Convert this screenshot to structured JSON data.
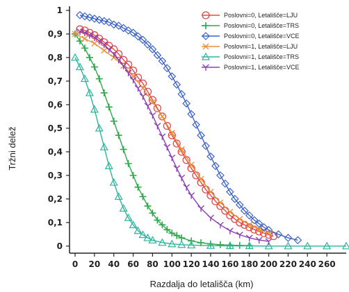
{
  "chart_data": {
    "type": "line",
    "xlabel": "Razdalja do letališča (km)",
    "ylabel": "Tržni delež",
    "xlim": [
      0,
      280
    ],
    "ylim": [
      -0.03,
      1.0
    ],
    "x_ticks": [
      0,
      20,
      40,
      60,
      80,
      100,
      120,
      140,
      160,
      180,
      200,
      220,
      240,
      260
    ],
    "x_tick_labels": [
      "0",
      "20",
      "40",
      "60",
      "80",
      "100",
      "120",
      "140",
      "160",
      "180",
      "200",
      "220",
      "240",
      "260"
    ],
    "y_ticks": [
      0,
      0.1,
      0.2,
      0.3,
      0.4,
      0.5,
      0.6,
      0.7,
      0.8,
      0.9,
      1
    ],
    "y_tick_labels": [
      "0",
      "0,1",
      "0,2",
      "0,3",
      "0,4",
      "0,5",
      "0,6",
      "0,7",
      "0,8",
      "0,9",
      "1"
    ],
    "grid": false,
    "legend_position": "top-right",
    "series": [
      {
        "name": "Poslovni=0, Letališče=LJU",
        "color": "#e04848",
        "marker": "circle",
        "x": [
          5,
          10,
          15,
          20,
          25,
          30,
          35,
          40,
          45,
          50,
          55,
          60,
          65,
          70,
          75,
          80,
          85,
          90,
          95,
          100,
          105,
          110,
          115,
          120,
          125,
          130,
          135,
          140,
          145,
          150,
          155,
          160,
          165,
          170,
          175,
          180,
          185,
          190,
          195,
          200,
          205
        ],
        "values": [
          0.92,
          0.915,
          0.905,
          0.895,
          0.88,
          0.865,
          0.85,
          0.835,
          0.815,
          0.79,
          0.77,
          0.745,
          0.715,
          0.69,
          0.655,
          0.62,
          0.585,
          0.55,
          0.51,
          0.47,
          0.435,
          0.4,
          0.365,
          0.33,
          0.3,
          0.27,
          0.24,
          0.215,
          0.19,
          0.17,
          0.15,
          0.13,
          0.115,
          0.1,
          0.09,
          0.08,
          0.07,
          0.062,
          0.055,
          0.048,
          0.042
        ]
      },
      {
        "name": "Poslovni=0, Letališče=TRS",
        "color": "#2ea84a",
        "marker": "plus",
        "x": [
          0,
          5,
          10,
          15,
          20,
          25,
          30,
          35,
          40,
          45,
          50,
          55,
          60,
          65,
          70,
          75,
          80,
          85,
          90,
          95,
          100,
          105,
          110,
          120,
          130,
          140,
          150,
          160,
          170,
          180
        ],
        "values": [
          0.9,
          0.87,
          0.84,
          0.8,
          0.76,
          0.71,
          0.65,
          0.59,
          0.53,
          0.47,
          0.41,
          0.35,
          0.3,
          0.25,
          0.21,
          0.17,
          0.14,
          0.11,
          0.09,
          0.07,
          0.055,
          0.045,
          0.035,
          0.022,
          0.014,
          0.009,
          0.006,
          0.004,
          0.003,
          0.002
        ]
      },
      {
        "name": "Poslovni=0, Letališče=VCE",
        "color": "#3a62c8",
        "marker": "diamond",
        "x": [
          5,
          10,
          15,
          20,
          25,
          30,
          35,
          40,
          45,
          50,
          55,
          60,
          65,
          70,
          75,
          80,
          85,
          90,
          95,
          100,
          105,
          110,
          115,
          120,
          125,
          130,
          135,
          140,
          145,
          150,
          155,
          160,
          165,
          170,
          175,
          180,
          185,
          190,
          195,
          200,
          210,
          220,
          230
        ],
        "values": [
          0.98,
          0.975,
          0.97,
          0.965,
          0.96,
          0.955,
          0.95,
          0.94,
          0.935,
          0.925,
          0.915,
          0.905,
          0.89,
          0.875,
          0.855,
          0.835,
          0.81,
          0.785,
          0.755,
          0.72,
          0.685,
          0.645,
          0.605,
          0.56,
          0.515,
          0.47,
          0.425,
          0.38,
          0.34,
          0.3,
          0.265,
          0.23,
          0.2,
          0.175,
          0.15,
          0.13,
          0.11,
          0.095,
          0.08,
          0.068,
          0.05,
          0.035,
          0.025
        ]
      },
      {
        "name": "Poslovni=1, Letališče=LJU",
        "color": "#e8913a",
        "marker": "x",
        "x": [
          0,
          10,
          20,
          30,
          40,
          50,
          60,
          70,
          80,
          90,
          100,
          110,
          120,
          130,
          140,
          150,
          160,
          170,
          180,
          190,
          200
        ],
        "values": [
          0.9,
          0.88,
          0.86,
          0.83,
          0.8,
          0.765,
          0.72,
          0.67,
          0.61,
          0.55,
          0.48,
          0.41,
          0.345,
          0.285,
          0.23,
          0.185,
          0.145,
          0.115,
          0.09,
          0.07,
          0.055
        ]
      },
      {
        "name": "Poslovni=1, Letališče=TRS",
        "color": "#2bb59a",
        "marker": "triangle",
        "x": [
          0,
          5,
          10,
          15,
          20,
          25,
          30,
          35,
          40,
          45,
          50,
          55,
          60,
          65,
          70,
          75,
          80,
          90,
          100,
          110,
          120,
          140,
          160,
          180,
          200,
          220,
          240,
          260,
          280
        ],
        "values": [
          0.8,
          0.76,
          0.71,
          0.65,
          0.58,
          0.5,
          0.42,
          0.34,
          0.27,
          0.21,
          0.16,
          0.12,
          0.09,
          0.065,
          0.048,
          0.035,
          0.025,
          0.015,
          0.009,
          0.006,
          0.004,
          0.002,
          0.001,
          0.001,
          0.0,
          0.0,
          0.0,
          0.0,
          0.0
        ]
      },
      {
        "name": "Poslovni=1, Letališče=VCE",
        "color": "#8a3fb5",
        "marker": "y",
        "x": [
          5,
          10,
          15,
          20,
          25,
          30,
          35,
          40,
          45,
          50,
          55,
          60,
          65,
          70,
          75,
          80,
          85,
          90,
          95,
          100,
          105,
          110,
          115,
          120,
          130,
          140,
          150,
          160,
          170,
          180,
          190,
          200
        ],
        "values": [
          0.91,
          0.905,
          0.895,
          0.885,
          0.87,
          0.855,
          0.835,
          0.815,
          0.79,
          0.765,
          0.735,
          0.705,
          0.67,
          0.635,
          0.595,
          0.555,
          0.51,
          0.465,
          0.42,
          0.375,
          0.33,
          0.29,
          0.25,
          0.215,
          0.16,
          0.12,
          0.09,
          0.065,
          0.048,
          0.035,
          0.026,
          0.02
        ]
      }
    ]
  }
}
